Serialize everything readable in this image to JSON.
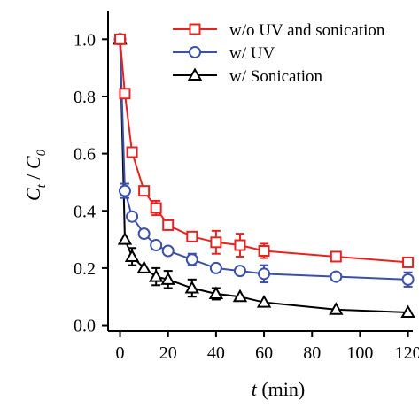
{
  "chart_data": {
    "type": "line",
    "xlabel_var": "t",
    "xlabel_unit": " (min)",
    "ylabel_num": "C",
    "ylabel_num_sub": "t",
    "ylabel_sep": " / ",
    "ylabel_den": "C",
    "ylabel_den_sub": "0",
    "xlim": [
      -5,
      122
    ],
    "ylim": [
      -0.02,
      1.1
    ],
    "xticks": [
      "0",
      "20",
      "40",
      "60",
      "80",
      "100",
      "120"
    ],
    "yticks": [
      "0.0",
      "0.2",
      "0.4",
      "0.6",
      "0.8",
      "1.0"
    ],
    "grid": false,
    "legend_position": "top-right",
    "series": [
      {
        "name": "w/o UV and sonication",
        "color": "#e8231f",
        "marker": "square",
        "x": [
          0,
          2,
          5,
          10,
          15,
          20,
          30,
          40,
          50,
          60,
          90,
          120
        ],
        "y": [
          1.0,
          0.81,
          0.605,
          0.47,
          0.41,
          0.35,
          0.31,
          0.29,
          0.28,
          0.26,
          0.24,
          0.22
        ],
        "err": [
          0,
          0,
          0,
          0,
          0.025,
          0,
          0.012,
          0.04,
          0.04,
          0.025,
          0,
          0.015
        ]
      },
      {
        "name": "w/ UV",
        "color": "#3b50a8",
        "marker": "circle",
        "x": [
          0,
          2,
          5,
          10,
          15,
          20,
          30,
          40,
          50,
          60,
          90,
          120
        ],
        "y": [
          1.0,
          0.47,
          0.38,
          0.32,
          0.28,
          0.26,
          0.23,
          0.2,
          0.19,
          0.18,
          0.17,
          0.16
        ],
        "err": [
          0,
          0.025,
          0,
          0,
          0,
          0,
          0.02,
          0,
          0,
          0.03,
          0,
          0.025
        ]
      },
      {
        "name": "w/ Sonication",
        "color": "#000000",
        "marker": "triangle",
        "x": [
          0,
          2,
          5,
          10,
          15,
          20,
          30,
          40,
          50,
          60,
          90,
          120
        ],
        "y": [
          1.0,
          0.3,
          0.24,
          0.2,
          0.17,
          0.16,
          0.13,
          0.11,
          0.1,
          0.08,
          0.055,
          0.045
        ],
        "err": [
          0,
          0,
          0.03,
          0,
          0.03,
          0.03,
          0.03,
          0.02,
          0,
          0,
          0,
          0
        ]
      }
    ]
  }
}
